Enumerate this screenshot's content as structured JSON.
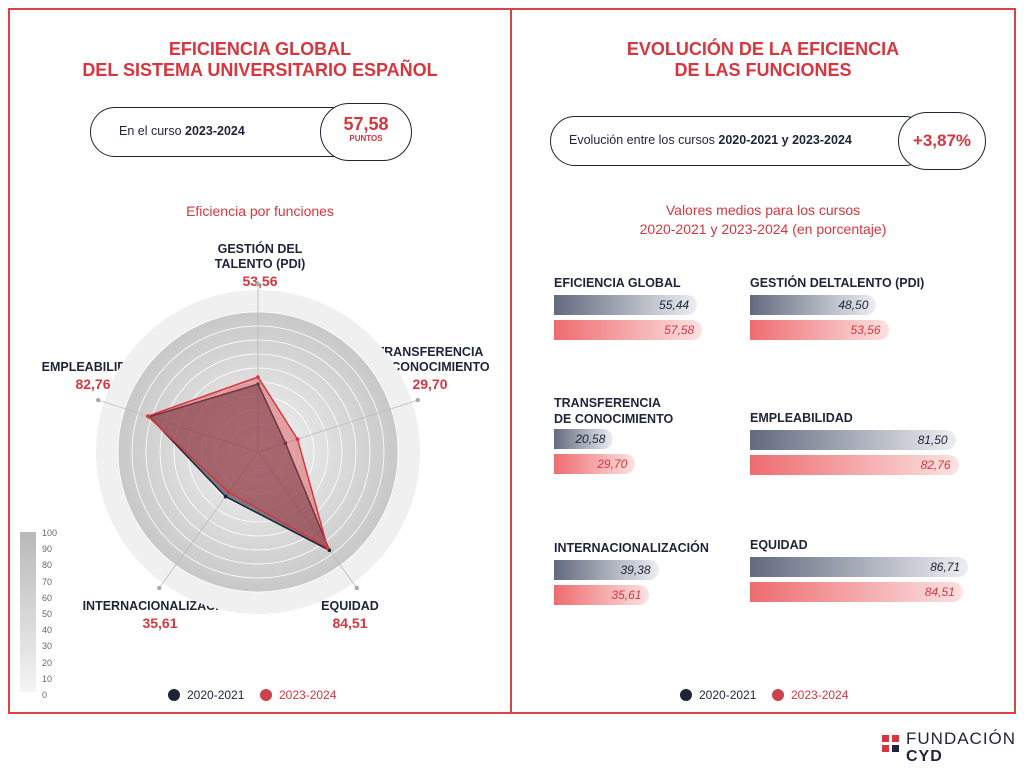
{
  "left": {
    "title_line1": "EFICIENCIA GLOBAL",
    "title_line2": "DEL SISTEMA UNIVERSITARIO ESPAÑOL",
    "pill_prefix": "En el curso ",
    "pill_year": "2023-2024",
    "score_value": "57,58",
    "score_unit": "PUNTOS",
    "chart_title": "Eficiencia por funciones",
    "scale_ticks": [
      "100",
      "90",
      "80",
      "70",
      "60",
      "50",
      "40",
      "30",
      "20",
      "10",
      "0"
    ],
    "legend": [
      "2020-2021",
      "2023-2024"
    ]
  },
  "right": {
    "title_line1": "EVOLUCIÓN DE LA EFICIENCIA",
    "title_line2": "DE LAS FUNCIONES",
    "pill_prefix": "Evolución entre los cursos ",
    "pill_years": "2020-2021 y 2023-2024",
    "delta": "+3,87%",
    "chart_title_line1": "Valores medios para los cursos",
    "chart_title_line2": "2020-2021 y 2023-2024 (en porcentaje)",
    "legend": [
      "2020-2021",
      "2023-2024"
    ]
  },
  "logo": {
    "line1": "FUNDACIÓN",
    "line2": "CYD"
  },
  "colors": {
    "accent": "#d8363e",
    "navy": "#1e2538",
    "series_2020": "#1e2538",
    "series_2023": "#c9454a"
  },
  "chart_data": [
    {
      "type": "radar",
      "title": "Eficiencia por funciones",
      "rlim": [
        0,
        100
      ],
      "axes": [
        "GESTIÓN DEL TALENTO (PDI)",
        "TRANSFERENCIA DE CONOCIMIENTO",
        "EQUIDAD",
        "INTERNACIONALIZACIÓN",
        "EMPLEABILIDAD"
      ],
      "axis_value_labels": [
        "53,56",
        "29,70",
        "84,51",
        "35,61",
        "82,76"
      ],
      "series": [
        {
          "name": "2020-2021",
          "values": [
            48.5,
            20.58,
            86.71,
            39.38,
            81.5
          ]
        },
        {
          "name": "2023-2024",
          "values": [
            53.56,
            29.7,
            84.51,
            35.61,
            82.76
          ]
        }
      ]
    },
    {
      "type": "bar",
      "title": "Valores medios para los cursos 2020-2021 y 2023-2024 (en porcentaje)",
      "categories": [
        "EFICIENCIA GLOBAL",
        "GESTIÓN DELTALENTO (PDI)",
        "TRANSFERENCIA DE CONOCIMIENTO",
        "EMPLEABILIDAD",
        "INTERNACIONALIZACIÓN",
        "EQUIDAD"
      ],
      "series": [
        {
          "name": "2020-2021",
          "values": [
            55.44,
            48.5,
            20.58,
            81.5,
            39.38,
            86.71
          ],
          "labels": [
            "55,44",
            "48,50",
            "20,58",
            "81,50",
            "39,38",
            "86,71"
          ]
        },
        {
          "name": "2023-2024",
          "values": [
            57.58,
            53.56,
            29.7,
            82.76,
            35.61,
            84.51
          ],
          "labels": [
            "57,58",
            "53,56",
            "29,70",
            "82,76",
            "35,61",
            "84,51"
          ]
        }
      ]
    }
  ]
}
